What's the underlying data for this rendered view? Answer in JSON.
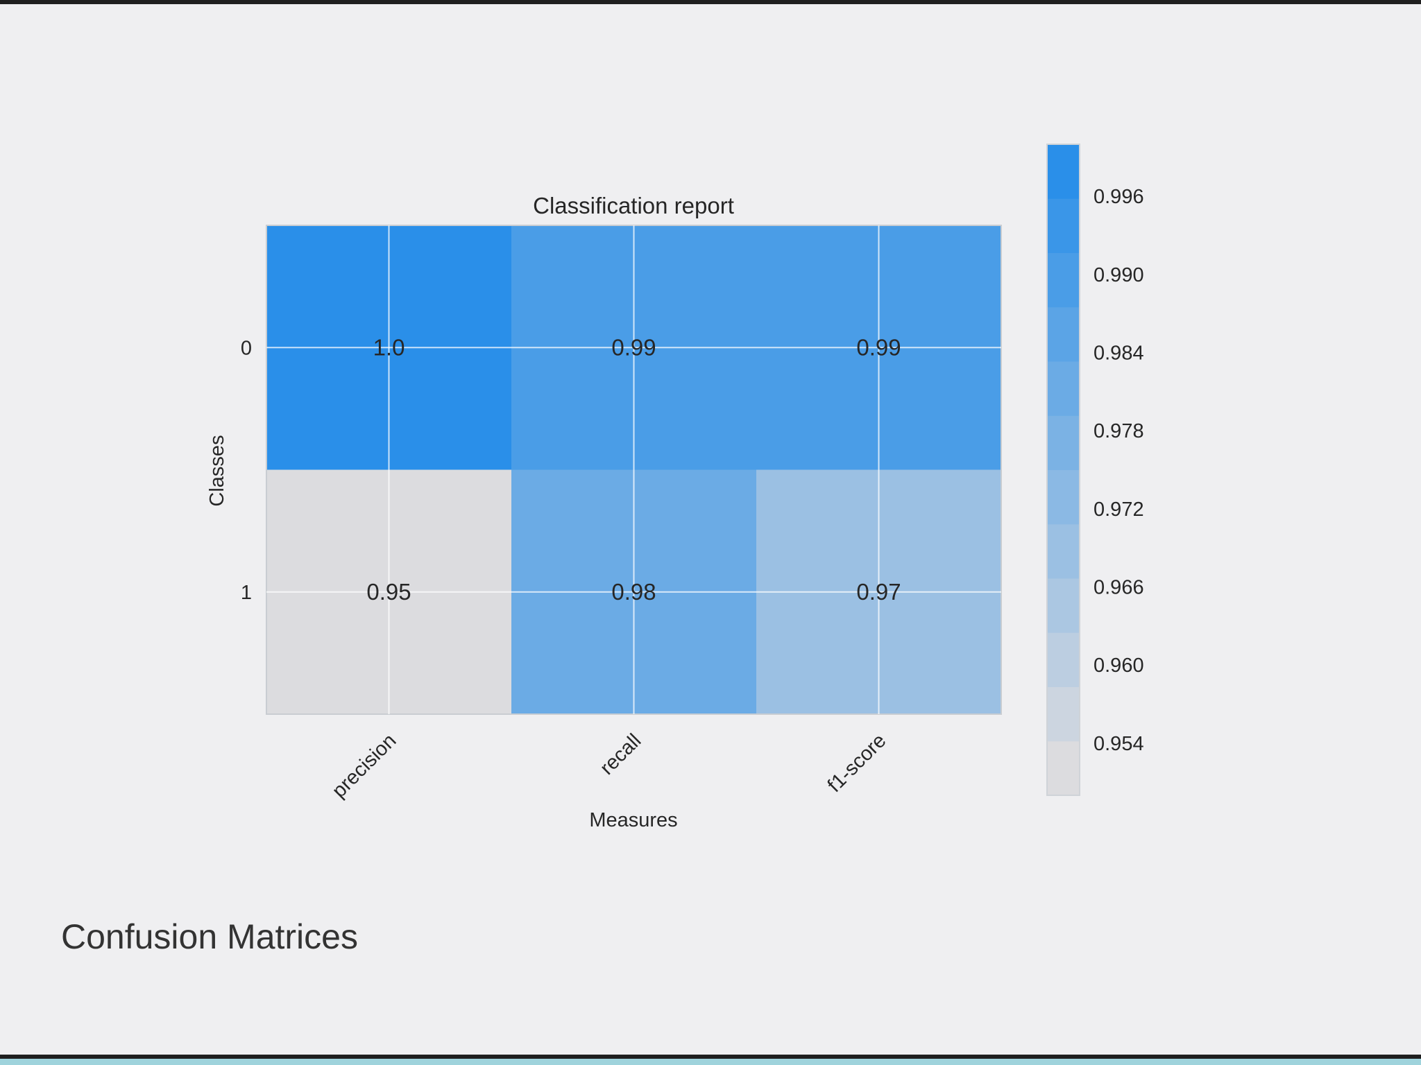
{
  "section": {
    "heading": "Confusion Matrices"
  },
  "chart_data": {
    "type": "heatmap",
    "title": "Classification report",
    "xlabel": "Measures",
    "ylabel": "Classes",
    "x_categories": [
      "precision",
      "recall",
      "f1-score"
    ],
    "y_categories": [
      "0",
      "1"
    ],
    "values": [
      [
        1.0,
        0.99,
        0.99
      ],
      [
        0.95,
        0.98,
        0.97
      ]
    ],
    "cell_labels": [
      [
        "1.0",
        "0.99",
        "0.99"
      ],
      [
        "0.95",
        "0.98",
        "0.97"
      ]
    ],
    "colorbar": {
      "range": [
        0.95,
        1.0
      ],
      "levels": 12,
      "ticks": [
        0.954,
        0.96,
        0.966,
        0.972,
        0.978,
        0.984,
        0.99,
        0.996
      ],
      "tick_labels": [
        "0.954",
        "0.960",
        "0.966",
        "0.972",
        "0.978",
        "0.984",
        "0.990",
        "0.996"
      ]
    },
    "colors": {
      "low": "#dcdcdf",
      "high": "#2a8fe9"
    },
    "grid": true,
    "x_tick_rotation": "45deg"
  }
}
